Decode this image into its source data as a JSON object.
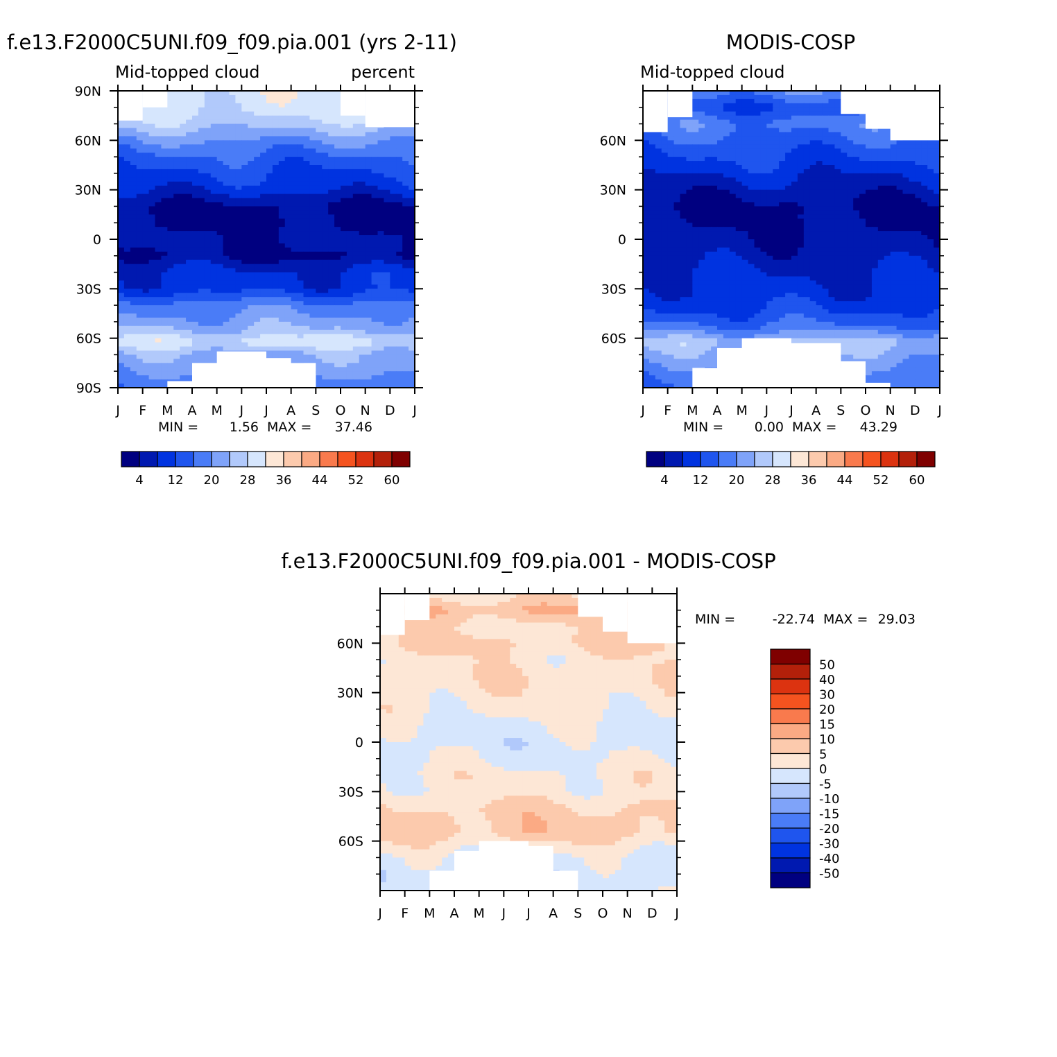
{
  "colors": {
    "abs_palette": [
      "#000080",
      "#0019b0",
      "#0033e0",
      "#1f55ee",
      "#4a7cf7",
      "#7fa3f9",
      "#b1c9fb",
      "#d6e6fd",
      "#fde7d6",
      "#fccaad",
      "#fbaa84",
      "#f97a4d",
      "#f5531f",
      "#dc3310",
      "#b3200a",
      "#7f0000"
    ],
    "diff_palette": [
      "#000080",
      "#0019b0",
      "#0033e0",
      "#1f55ee",
      "#4a7cf7",
      "#7fa3f9",
      "#b1c9fb",
      "#d6e6fd",
      "#fde7d6",
      "#fccaad",
      "#fbaa84",
      "#f97a4d",
      "#f5531f",
      "#dc3310",
      "#b3200a",
      "#7f0000"
    ]
  },
  "chart_data": [
    {
      "type": "heatmap",
      "title": "f.e13.F2000C5UNI.f09_f09.pia.001 (yrs 2-11)",
      "left_subtitle": "Mid-topped cloud",
      "right_subtitle": "percent",
      "x_ticks": [
        "J",
        "F",
        "M",
        "A",
        "M",
        "J",
        "J",
        "A",
        "S",
        "O",
        "N",
        "D",
        "J"
      ],
      "y_ticks": [
        "90N",
        "60N",
        "30N",
        "0",
        "30S",
        "60S",
        "90S"
      ],
      "y_tick_values": [
        90,
        60,
        30,
        0,
        -30,
        -60,
        -90
      ],
      "xlim": [
        0,
        12
      ],
      "ylim": [
        -90,
        90
      ],
      "min_label": "MIN =",
      "min_value": "1.56",
      "max_label": "MAX =",
      "max_value": "37.46",
      "colorbar_labels": [
        "4",
        "12",
        "20",
        "28",
        "36",
        "44",
        "52",
        "60"
      ],
      "levels": [
        4,
        8,
        12,
        16,
        20,
        24,
        28,
        32,
        36,
        40,
        44,
        48,
        52,
        56,
        60
      ],
      "units": "percent",
      "zonal_profile": [
        [
          -88,
          18
        ],
        [
          -80,
          20
        ],
        [
          -70,
          23
        ],
        [
          -62,
          30
        ],
        [
          -55,
          24
        ],
        [
          -48,
          21
        ],
        [
          -40,
          18
        ],
        [
          -30,
          10
        ],
        [
          -20,
          9
        ],
        [
          -10,
          3
        ],
        [
          0,
          5
        ],
        [
          10,
          3
        ],
        [
          20,
          3
        ],
        [
          30,
          9
        ],
        [
          40,
          12
        ],
        [
          50,
          15
        ],
        [
          60,
          20
        ],
        [
          70,
          26
        ],
        [
          80,
          30
        ],
        [
          88,
          30
        ]
      ],
      "missing_regions": [
        {
          "months": [
            1.0,
            2.0
          ],
          "lat": [
            80,
            90
          ]
        },
        {
          "months": [
            0.0,
            1.0
          ],
          "lat": [
            72,
            90
          ]
        },
        {
          "months": [
            9.0,
            10.0
          ],
          "lat": [
            75,
            90
          ]
        },
        {
          "months": [
            10.0,
            12.0
          ],
          "lat": [
            68,
            90
          ]
        },
        {
          "months": [
            2.0,
            3.0
          ],
          "lat": [
            -90,
            -86
          ]
        },
        {
          "months": [
            3.0,
            8.0
          ],
          "lat": [
            -90,
            -75
          ]
        },
        {
          "months": [
            4.0,
            6.0
          ],
          "lat": [
            -90,
            -68
          ]
        },
        {
          "months": [
            6.0,
            7.0
          ],
          "lat": [
            -90,
            -72
          ]
        },
        {
          "months": [
            7.0,
            8.0
          ],
          "lat": [
            -90,
            -82
          ]
        }
      ]
    },
    {
      "type": "heatmap",
      "title": "MODIS-COSP",
      "left_subtitle": "Mid-topped cloud",
      "x_ticks": [
        "J",
        "F",
        "M",
        "A",
        "M",
        "J",
        "J",
        "A",
        "S",
        "O",
        "N",
        "D",
        "J"
      ],
      "y_ticks": [
        "60N",
        "30N",
        "0",
        "30S",
        "60S"
      ],
      "y_tick_values": [
        60,
        30,
        0,
        -30,
        -60
      ],
      "xlim": [
        0,
        12
      ],
      "ylim": [
        -90,
        90
      ],
      "min_label": "MIN =",
      "min_value": "0.00",
      "max_label": "MAX =",
      "max_value": "43.29",
      "colorbar_labels": [
        "4",
        "12",
        "20",
        "28",
        "36",
        "44",
        "52",
        "60"
      ],
      "levels": [
        4,
        8,
        12,
        16,
        20,
        24,
        28,
        32,
        36,
        40,
        44,
        48,
        52,
        56,
        60
      ],
      "zonal_profile": [
        [
          -88,
          16
        ],
        [
          -80,
          18
        ],
        [
          -70,
          22
        ],
        [
          -62,
          26
        ],
        [
          -55,
          18
        ],
        [
          -48,
          14
        ],
        [
          -40,
          11
        ],
        [
          -30,
          9
        ],
        [
          -20,
          8
        ],
        [
          -10,
          6
        ],
        [
          0,
          5
        ],
        [
          10,
          4
        ],
        [
          20,
          3
        ],
        [
          30,
          6
        ],
        [
          40,
          9
        ],
        [
          50,
          12
        ],
        [
          60,
          15
        ],
        [
          70,
          18
        ],
        [
          80,
          12
        ],
        [
          88,
          18
        ]
      ],
      "missing_regions": [
        {
          "months": [
            0.0,
            1.0
          ],
          "lat": [
            65,
            90
          ]
        },
        {
          "months": [
            1.0,
            2.0
          ],
          "lat": [
            74,
            90
          ]
        },
        {
          "months": [
            8.0,
            12.0
          ],
          "lat": [
            76,
            90
          ]
        },
        {
          "months": [
            9.0,
            12.0
          ],
          "lat": [
            67,
            90
          ]
        },
        {
          "months": [
            10.0,
            12.0
          ],
          "lat": [
            60,
            90
          ]
        },
        {
          "months": [
            2.0,
            9.0
          ],
          "lat": [
            -90,
            -78
          ]
        },
        {
          "months": [
            3.0,
            8.0
          ],
          "lat": [
            -90,
            -66
          ]
        },
        {
          "months": [
            4.0,
            6.0
          ],
          "lat": [
            -90,
            -60
          ]
        },
        {
          "months": [
            6.0,
            8.0
          ],
          "lat": [
            -90,
            -63
          ]
        },
        {
          "months": [
            8.0,
            9.0
          ],
          "lat": [
            -90,
            -74
          ]
        },
        {
          "months": [
            9.0,
            10.0
          ],
          "lat": [
            -90,
            -87
          ]
        }
      ]
    },
    {
      "type": "heatmap",
      "title": "f.e13.F2000C5UNI.f09_f09.pia.001 - MODIS-COSP",
      "x_ticks": [
        "J",
        "F",
        "M",
        "A",
        "M",
        "J",
        "J",
        "A",
        "S",
        "O",
        "N",
        "D",
        "J"
      ],
      "y_ticks": [
        "60N",
        "30N",
        "0",
        "30S",
        "60S"
      ],
      "y_tick_values": [
        60,
        30,
        0,
        -30,
        -60
      ],
      "xlim": [
        0,
        12
      ],
      "ylim": [
        -90,
        90
      ],
      "min_label": "MIN =",
      "min_value": "-22.74",
      "max_label": "MAX =",
      "max_value": "29.03",
      "colorbar_labels": [
        "50",
        "40",
        "30",
        "20",
        "15",
        "10",
        "5",
        "0",
        "-5",
        "-10",
        "-15",
        "-20",
        "-30",
        "-40",
        "-50"
      ],
      "levels": [
        -50,
        -40,
        -30,
        -20,
        -15,
        -10,
        -5,
        0,
        5,
        10,
        15,
        20,
        30,
        40,
        50
      ],
      "zonal_profile": [
        [
          -88,
          -2
        ],
        [
          -80,
          -3
        ],
        [
          -70,
          -2
        ],
        [
          -62,
          3
        ],
        [
          -55,
          8
        ],
        [
          -48,
          7
        ],
        [
          -40,
          6
        ],
        [
          -30,
          2
        ],
        [
          -20,
          2
        ],
        [
          -10,
          -1
        ],
        [
          0,
          -2
        ],
        [
          10,
          -1
        ],
        [
          20,
          2
        ],
        [
          30,
          3
        ],
        [
          40,
          4
        ],
        [
          50,
          3
        ],
        [
          60,
          6
        ],
        [
          70,
          4
        ],
        [
          80,
          10
        ],
        [
          88,
          4
        ]
      ],
      "missing_regions": [
        {
          "months": [
            0.0,
            1.0
          ],
          "lat": [
            65,
            90
          ]
        },
        {
          "months": [
            1.0,
            2.0
          ],
          "lat": [
            74,
            90
          ]
        },
        {
          "months": [
            8.0,
            9.0
          ],
          "lat": [
            76,
            90
          ]
        },
        {
          "months": [
            9.0,
            10.0
          ],
          "lat": [
            67,
            90
          ]
        },
        {
          "months": [
            10.0,
            12.0
          ],
          "lat": [
            60,
            90
          ]
        },
        {
          "months": [
            2.0,
            8.0
          ],
          "lat": [
            -90,
            -78
          ]
        },
        {
          "months": [
            3.0,
            7.0
          ],
          "lat": [
            -90,
            -66
          ]
        },
        {
          "months": [
            4.0,
            6.0
          ],
          "lat": [
            -90,
            -60
          ]
        },
        {
          "months": [
            6.0,
            7.0
          ],
          "lat": [
            -90,
            -63
          ]
        }
      ]
    }
  ]
}
